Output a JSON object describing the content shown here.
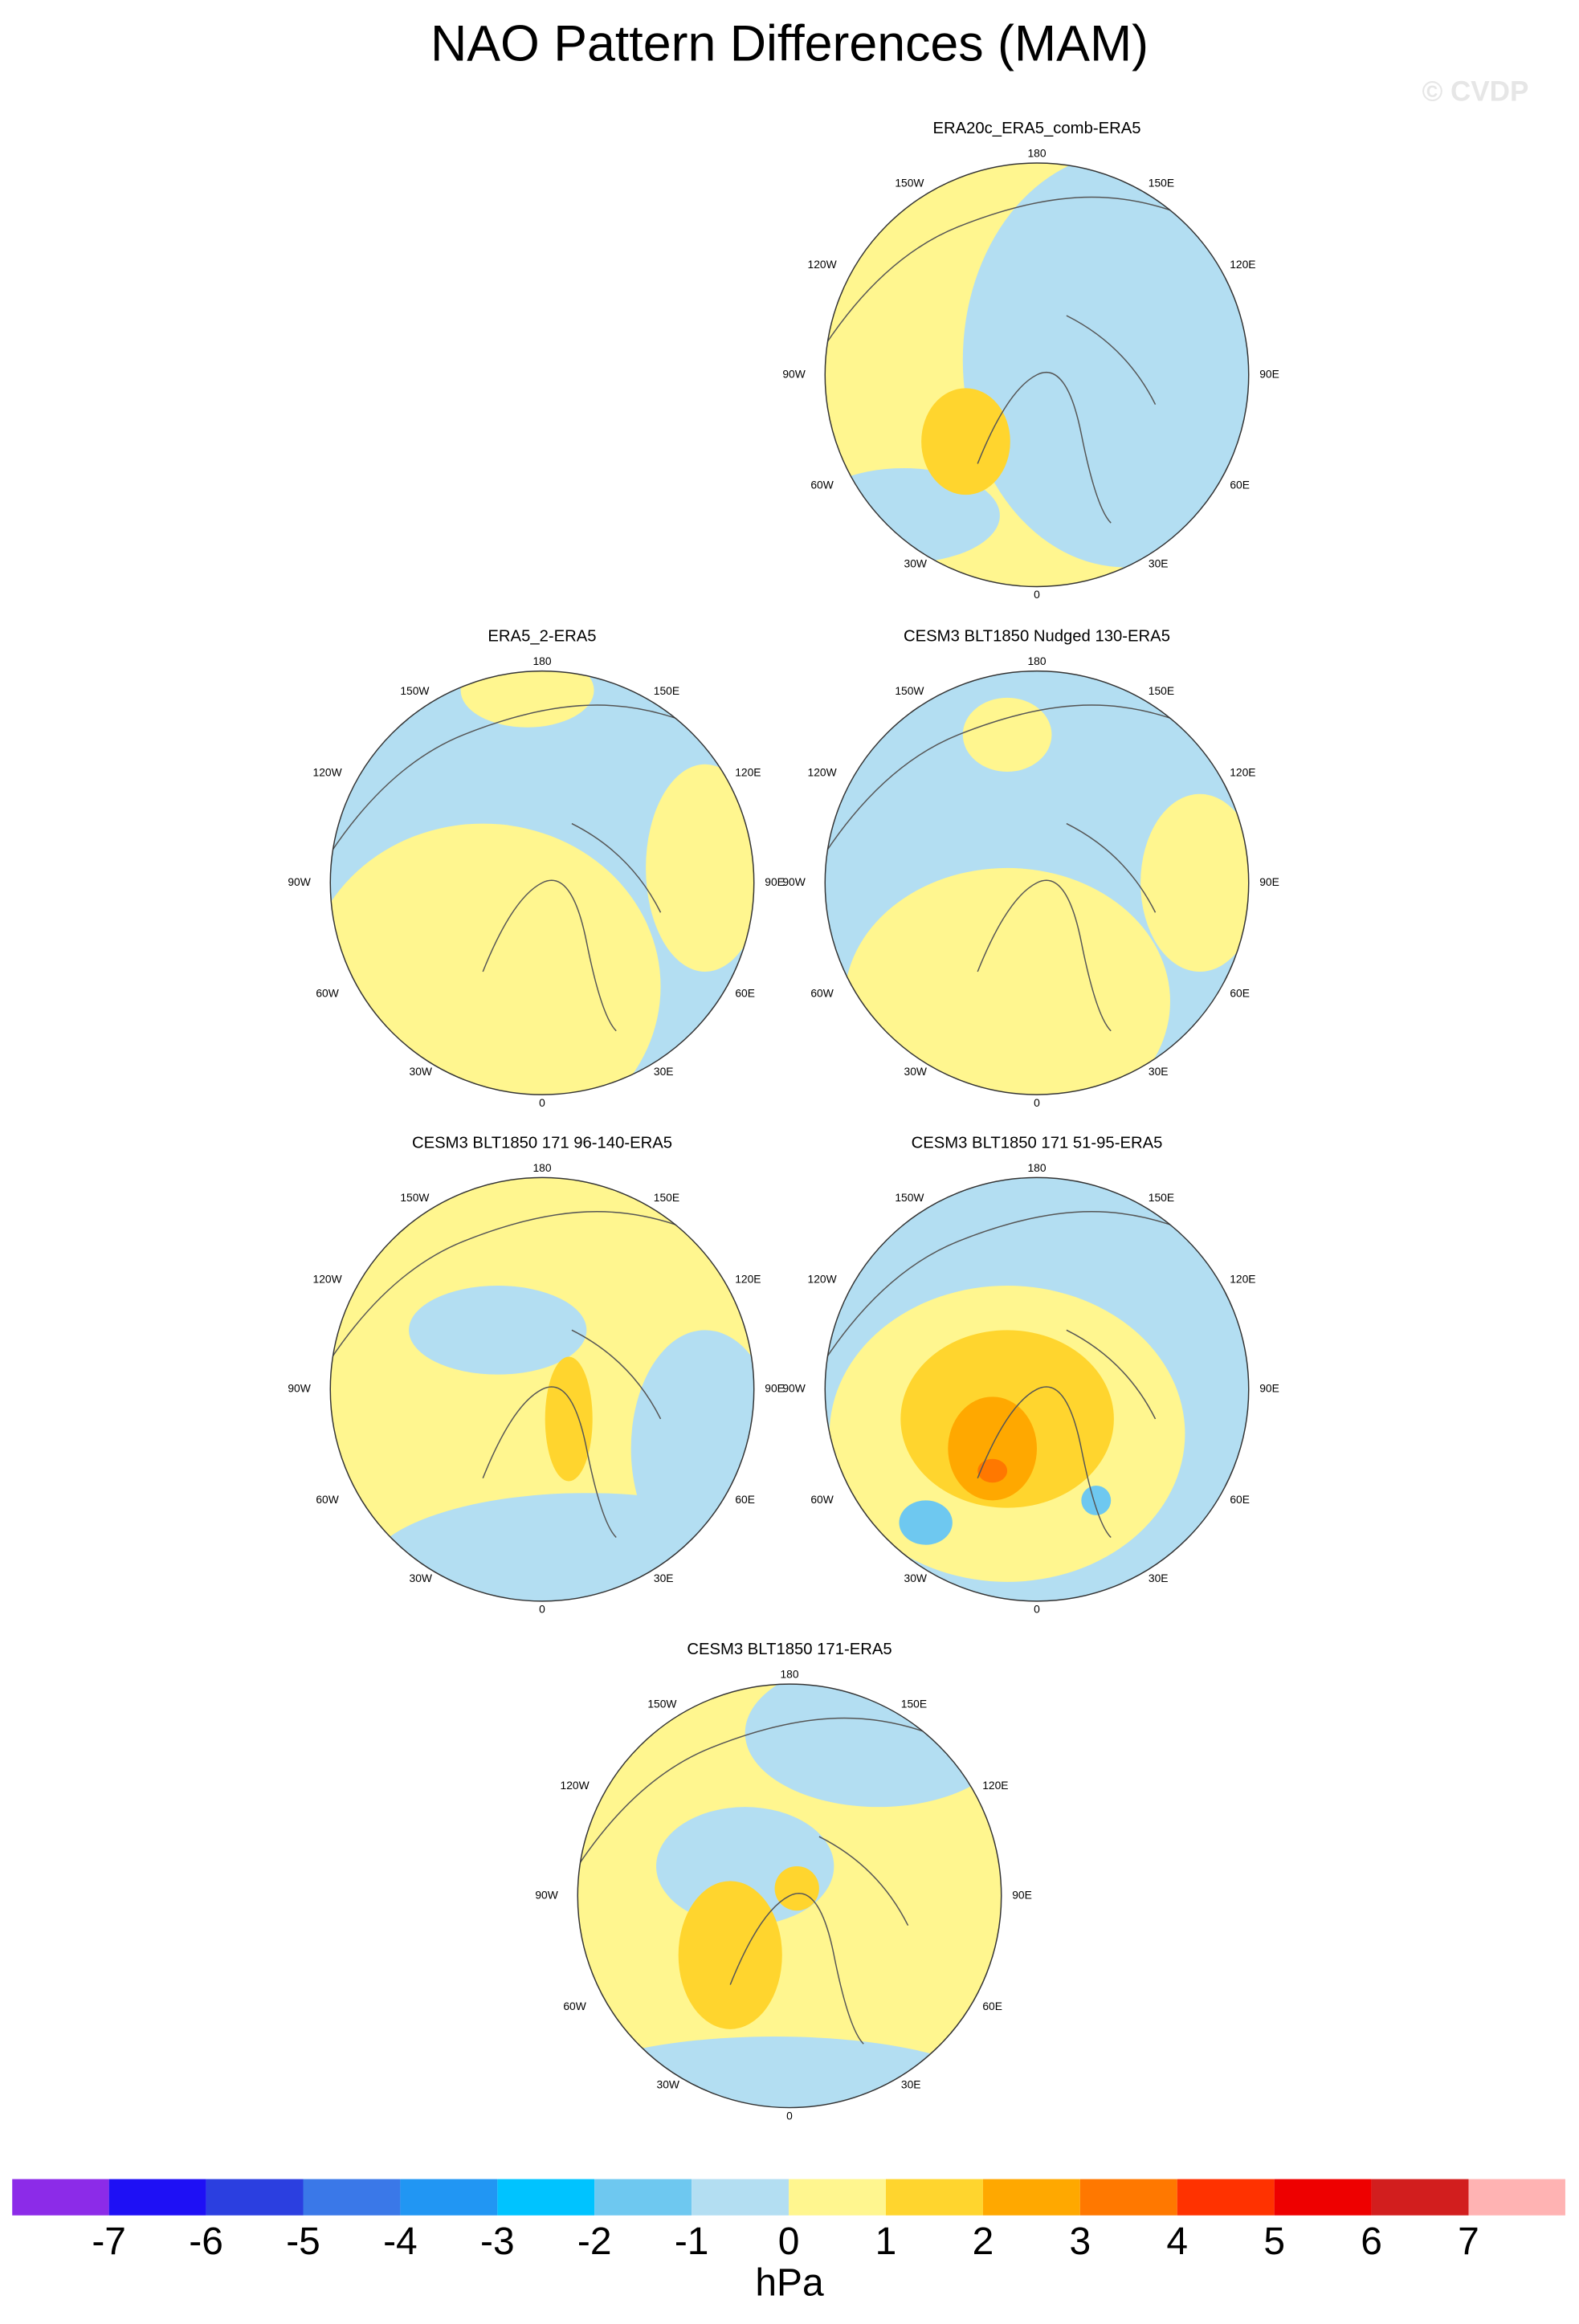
{
  "title": "NAO Pattern Differences (MAM)",
  "watermark": "© CVDP",
  "panels": [
    {
      "title": "ERA20c_ERA5_comb-ERA5"
    },
    {
      "title": "ERA5_2-ERA5"
    },
    {
      "title": "CESM3 BLT1850 Nudged 130-ERA5"
    },
    {
      "title": "CESM3 BLT1850 171 96-140-ERA5"
    },
    {
      "title": "CESM3 BLT1850 171 51-95-ERA5"
    },
    {
      "title": "CESM3 BLT1850 171-ERA5"
    }
  ],
  "lon_labels": [
    "180",
    "150W",
    "150E",
    "120W",
    "120E",
    "90W",
    "90E",
    "60W",
    "60E",
    "30W",
    "30E",
    "0"
  ],
  "colorbar": {
    "levels": [
      -7,
      -6,
      -5,
      -4,
      -3,
      -2,
      -1,
      0,
      1,
      2,
      3,
      4,
      5,
      6,
      7
    ],
    "colors": [
      "#8c2be8",
      "#1e10f5",
      "#2b3fe0",
      "#3a78e8",
      "#2196f3",
      "#00c3ff",
      "#6ec8f0",
      "#b3def2",
      "#fff68f",
      "#ffd52e",
      "#ffa800",
      "#ff7800",
      "#ff3200",
      "#ee0000",
      "#d21e1e",
      "#ffb3b3"
    ],
    "unit": "hPa"
  }
}
